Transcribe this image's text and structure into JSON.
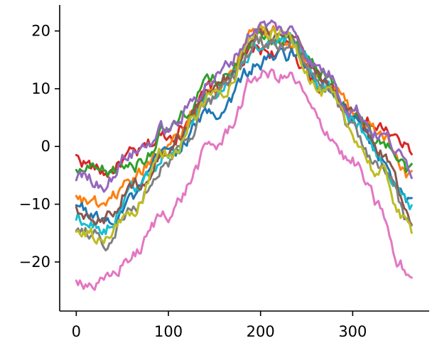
{
  "chart_data": {
    "type": "line",
    "title": "",
    "xlabel": "",
    "ylabel": "",
    "xlim": [
      -18,
      383
    ],
    "ylim": [
      -28.5,
      24.5
    ],
    "xticks": [
      0,
      100,
      200,
      300
    ],
    "yticks": [
      -20,
      -10,
      0,
      10,
      20
    ],
    "xtick_labels": [
      "0",
      "100",
      "200",
      "300"
    ],
    "ytick_labels": [
      "−20",
      "−10",
      "0",
      "10",
      "20"
    ],
    "grid": false,
    "legend": "none",
    "series": [
      {
        "color": "#d62728",
        "keypoints": [
          [
            0,
            -2
          ],
          [
            30,
            -4.5
          ],
          [
            60,
            -2
          ],
          [
            100,
            2
          ],
          [
            150,
            10
          ],
          [
            200,
            16.5
          ],
          [
            230,
            16.5
          ],
          [
            270,
            10
          ],
          [
            300,
            6
          ],
          [
            330,
            3
          ],
          [
            365,
            -1
          ]
        ]
      },
      {
        "color": "#ff7f0e",
        "keypoints": [
          [
            0,
            -9
          ],
          [
            30,
            -11
          ],
          [
            60,
            -6
          ],
          [
            100,
            1
          ],
          [
            150,
            10
          ],
          [
            200,
            20
          ],
          [
            230,
            19
          ],
          [
            270,
            12
          ],
          [
            300,
            6
          ],
          [
            330,
            2
          ],
          [
            365,
            -6
          ]
        ]
      },
      {
        "color": "#2ca02c",
        "keypoints": [
          [
            0,
            -4
          ],
          [
            30,
            -5
          ],
          [
            60,
            -3
          ],
          [
            100,
            2.5
          ],
          [
            150,
            11
          ],
          [
            200,
            20.5
          ],
          [
            230,
            19
          ],
          [
            270,
            12
          ],
          [
            300,
            6
          ],
          [
            330,
            1
          ],
          [
            365,
            -5
          ]
        ]
      },
      {
        "color": "#1f77b4",
        "keypoints": [
          [
            0,
            -10
          ],
          [
            30,
            -13
          ],
          [
            60,
            -9
          ],
          [
            100,
            -1
          ],
          [
            150,
            6
          ],
          [
            200,
            14.5
          ],
          [
            230,
            16
          ],
          [
            270,
            10
          ],
          [
            300,
            4
          ],
          [
            330,
            -2
          ],
          [
            365,
            -10
          ]
        ]
      },
      {
        "color": "#17becf",
        "keypoints": [
          [
            0,
            -12
          ],
          [
            30,
            -14
          ],
          [
            60,
            -8
          ],
          [
            100,
            -0.5
          ],
          [
            150,
            9
          ],
          [
            200,
            18
          ],
          [
            230,
            18
          ],
          [
            270,
            11
          ],
          [
            300,
            5
          ],
          [
            330,
            -2
          ],
          [
            365,
            -11
          ]
        ]
      },
      {
        "color": "#8c564b",
        "keypoints": [
          [
            0,
            -11
          ],
          [
            30,
            -12
          ],
          [
            60,
            -7
          ],
          [
            100,
            0
          ],
          [
            150,
            10
          ],
          [
            200,
            19
          ],
          [
            230,
            18
          ],
          [
            270,
            11
          ],
          [
            300,
            5
          ],
          [
            330,
            -1
          ],
          [
            365,
            -12
          ]
        ]
      },
      {
        "color": "#7f7f7f",
        "keypoints": [
          [
            0,
            -14
          ],
          [
            30,
            -16
          ],
          [
            60,
            -11
          ],
          [
            100,
            -2
          ],
          [
            150,
            8
          ],
          [
            200,
            18
          ],
          [
            230,
            18
          ],
          [
            270,
            9
          ],
          [
            300,
            3
          ],
          [
            330,
            -4
          ],
          [
            365,
            -14
          ]
        ]
      },
      {
        "color": "#bcbd22",
        "keypoints": [
          [
            0,
            -14.5
          ],
          [
            30,
            -16.5
          ],
          [
            60,
            -11
          ],
          [
            100,
            -1
          ],
          [
            150,
            9
          ],
          [
            200,
            20
          ],
          [
            230,
            19
          ],
          [
            270,
            9
          ],
          [
            300,
            2
          ],
          [
            330,
            -5
          ],
          [
            365,
            -15
          ]
        ]
      },
      {
        "color": "#e377c2",
        "keypoints": [
          [
            0,
            -22.5
          ],
          [
            30,
            -24
          ],
          [
            60,
            -19
          ],
          [
            100,
            -11
          ],
          [
            150,
            0
          ],
          [
            200,
            12.5
          ],
          [
            230,
            12
          ],
          [
            270,
            3
          ],
          [
            300,
            -3
          ],
          [
            330,
            -11
          ],
          [
            350,
            -21
          ],
          [
            365,
            -22.5
          ]
        ]
      },
      {
        "color": "#9467bd",
        "keypoints": [
          [
            0,
            -5
          ],
          [
            30,
            -6
          ],
          [
            60,
            -1
          ],
          [
            100,
            3
          ],
          [
            150,
            12
          ],
          [
            200,
            21
          ],
          [
            230,
            20
          ],
          [
            270,
            13
          ],
          [
            300,
            7
          ],
          [
            330,
            2
          ],
          [
            365,
            -4
          ]
        ]
      }
    ]
  }
}
